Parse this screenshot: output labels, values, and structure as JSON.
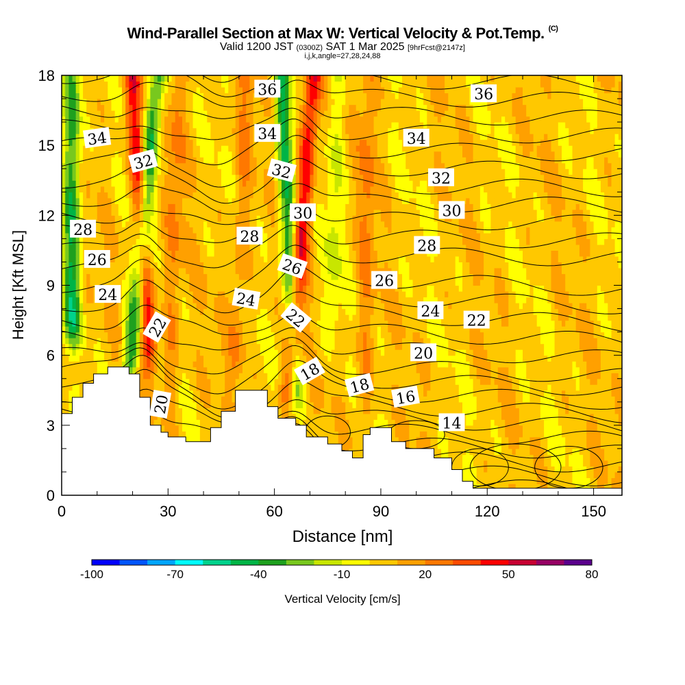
{
  "titles": {
    "main": "Wind-Parallel Section at Max W: Vertical Velocity & Pot.Temp.",
    "copyright": "(C)",
    "valid_prefix": "Valid 1200 JST",
    "utc": "(0300Z)",
    "valid_date": "SAT 1 Mar 2025",
    "fcst": "[9hrFcst@2147z]",
    "indices": "i,j,k,angle=27,28,24,88"
  },
  "chart_data": {
    "type": "heatmap",
    "xlabel": "Distance [nm]",
    "ylabel": "Height [Kft MSL]",
    "xlim": [
      0,
      158
    ],
    "ylim": [
      0,
      18
    ],
    "x_ticks": [
      "0",
      "30",
      "60",
      "90",
      "120",
      "150"
    ],
    "y_ticks": [
      "0",
      "3",
      "6",
      "9",
      "12",
      "15",
      "18"
    ],
    "colorbar": {
      "label": "Vertical Velocity [cm/s]",
      "min": -100,
      "max": 80,
      "tick_labels": [
        "-100",
        "-70",
        "-40",
        "-10",
        "20",
        "50",
        "80"
      ],
      "colors": [
        "#0000ff",
        "#0055ff",
        "#00a5ff",
        "#00ffff",
        "#00d28c",
        "#00b446",
        "#1ea01e",
        "#78c81e",
        "#c8e600",
        "#ffff00",
        "#ffc800",
        "#ffa000",
        "#ff7800",
        "#ff4b00",
        "#ff0000",
        "#c80032",
        "#960064",
        "#5a008c"
      ]
    },
    "terrain": [
      [
        0,
        3.5
      ],
      [
        0.5,
        3.5
      ],
      [
        3,
        3.5
      ],
      [
        3,
        4.2
      ],
      [
        6,
        4.2
      ],
      [
        6,
        4.8
      ],
      [
        9,
        4.8
      ],
      [
        9,
        5.2
      ],
      [
        13,
        5.2
      ],
      [
        13,
        5.5
      ],
      [
        19,
        5.5
      ],
      [
        19,
        5.2
      ],
      [
        22,
        5.2
      ],
      [
        22,
        4.2
      ],
      [
        25,
        4.2
      ],
      [
        25,
        3
      ],
      [
        28,
        3
      ],
      [
        28,
        2.7
      ],
      [
        30,
        2.7
      ],
      [
        30,
        2.5
      ],
      [
        35,
        2.5
      ],
      [
        35,
        2.3
      ],
      [
        42,
        2.3
      ],
      [
        42,
        2.9
      ],
      [
        45,
        2.9
      ],
      [
        45,
        3.6
      ],
      [
        49,
        3.6
      ],
      [
        49,
        4.5
      ],
      [
        58,
        4.5
      ],
      [
        58,
        3.8
      ],
      [
        61,
        3.8
      ],
      [
        61,
        3.3
      ],
      [
        66,
        3.3
      ],
      [
        66,
        3
      ],
      [
        69,
        3
      ],
      [
        69,
        2.5
      ],
      [
        75,
        2.5
      ],
      [
        75,
        2.2
      ],
      [
        79,
        2.2
      ],
      [
        79,
        1.9
      ],
      [
        82,
        1.9
      ],
      [
        82,
        1.6
      ],
      [
        85,
        1.6
      ],
      [
        85,
        2.6
      ],
      [
        87,
        2.6
      ],
      [
        87,
        2.9
      ],
      [
        93,
        2.9
      ],
      [
        93,
        2.3
      ],
      [
        97,
        2.3
      ],
      [
        97,
        2
      ],
      [
        105,
        2
      ],
      [
        105,
        1.6
      ],
      [
        110,
        1.6
      ],
      [
        110,
        1.1
      ],
      [
        113,
        1.1
      ],
      [
        113,
        0.6
      ],
      [
        116,
        0.6
      ],
      [
        116,
        0.3
      ],
      [
        158,
        0.3
      ]
    ],
    "updraft_bands": [
      {
        "x_bottom": 25,
        "x_top": 20,
        "y_bottom": 5.6,
        "peak": 50
      },
      {
        "x_bottom": 64,
        "x_top": 71,
        "y_bottom": 4.0,
        "peak": 50
      },
      {
        "x_bottom": 49,
        "x_top": 52,
        "y_bottom": 5.0,
        "peak": 20
      },
      {
        "x_bottom": 30,
        "x_top": 33,
        "y_bottom": 3.0,
        "peak": 20
      },
      {
        "x_bottom": 85,
        "x_top": 87,
        "y_bottom": 3.0,
        "peak": 20
      }
    ],
    "downdraft_bands": [
      {
        "x_bottom": 19,
        "x_top": 27,
        "y_bottom": 5.0,
        "peak": -40
      },
      {
        "x_bottom": 66,
        "x_top": 62,
        "y_bottom": 4.0,
        "peak": -40
      },
      {
        "x_bottom": 3,
        "x_top": 3,
        "y_bottom": 6.5,
        "peak": -40
      },
      {
        "x_bottom": 76,
        "x_top": 78,
        "y_bottom": 7.0,
        "peak": -10
      }
    ],
    "isentrope_labels": [
      {
        "value": "36",
        "x": 58,
        "y": 17.4,
        "angle": 0
      },
      {
        "value": "36",
        "x": 119,
        "y": 17.2,
        "angle": 0
      },
      {
        "value": "34",
        "x": 10,
        "y": 15.3,
        "angle": -8
      },
      {
        "value": "34",
        "x": 58,
        "y": 15.5,
        "angle": 0
      },
      {
        "value": "34",
        "x": 100,
        "y": 15.3,
        "angle": 0
      },
      {
        "value": "32",
        "x": 23,
        "y": 14.3,
        "angle": -15
      },
      {
        "value": "32",
        "x": 62,
        "y": 13.9,
        "angle": 15
      },
      {
        "value": "32",
        "x": 107,
        "y": 13.6,
        "angle": 0
      },
      {
        "value": "30",
        "x": 68,
        "y": 12.1,
        "angle": 0
      },
      {
        "value": "30",
        "x": 110,
        "y": 12.2,
        "angle": 0
      },
      {
        "value": "28",
        "x": 6,
        "y": 11.4,
        "angle": 0
      },
      {
        "value": "28",
        "x": 53,
        "y": 11.1,
        "angle": 0
      },
      {
        "value": "28",
        "x": 103,
        "y": 10.7,
        "angle": 0
      },
      {
        "value": "26",
        "x": 10,
        "y": 10.1,
        "angle": 0
      },
      {
        "value": "26",
        "x": 65,
        "y": 9.8,
        "angle": 20
      },
      {
        "value": "26",
        "x": 91,
        "y": 9.2,
        "angle": 0
      },
      {
        "value": "24",
        "x": 13,
        "y": 8.6,
        "angle": 0
      },
      {
        "value": "24",
        "x": 52,
        "y": 8.4,
        "angle": 10
      },
      {
        "value": "24",
        "x": 104,
        "y": 7.9,
        "angle": 0
      },
      {
        "value": "22",
        "x": 27,
        "y": 7.2,
        "angle": -60
      },
      {
        "value": "22",
        "x": 66,
        "y": 7.6,
        "angle": 40
      },
      {
        "value": "22",
        "x": 117,
        "y": 7.5,
        "angle": 0
      },
      {
        "value": "20",
        "x": 28,
        "y": 3.9,
        "angle": -80
      },
      {
        "value": "20",
        "x": 102,
        "y": 6.1,
        "angle": 0
      },
      {
        "value": "18",
        "x": 70,
        "y": 5.3,
        "angle": -30
      },
      {
        "value": "18",
        "x": 84,
        "y": 4.7,
        "angle": -15
      },
      {
        "value": "16",
        "x": 97,
        "y": 4.2,
        "angle": -10
      },
      {
        "value": "14",
        "x": 110,
        "y": 3.1,
        "angle": 0
      }
    ]
  }
}
